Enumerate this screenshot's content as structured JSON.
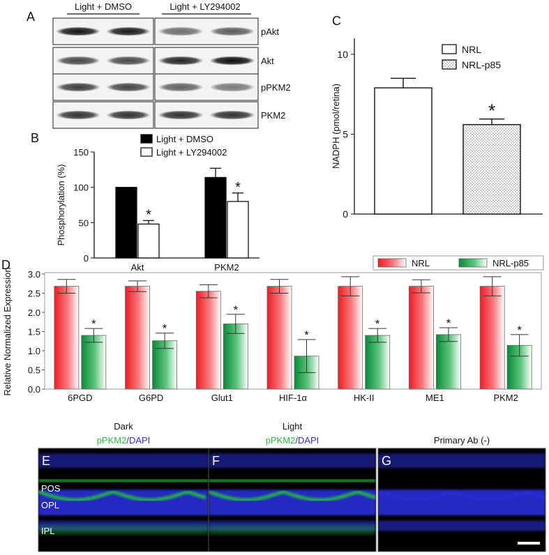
{
  "panels": {
    "a": "A",
    "b": "B",
    "c": "C",
    "d": "D",
    "e": "E",
    "f": "F",
    "g": "G"
  },
  "western_blot": {
    "groups": [
      "Light + DMSO",
      "Light + LY294002"
    ],
    "bands": [
      {
        "label": "pAkt",
        "intensity": [
          0.92,
          0.9,
          0.55,
          0.62
        ]
      },
      {
        "label": "Akt",
        "intensity": [
          0.7,
          0.7,
          0.85,
          0.95
        ]
      },
      {
        "label": "pPKM2",
        "intensity": [
          0.75,
          0.72,
          0.6,
          0.5
        ]
      },
      {
        "label": "PKM2",
        "intensity": [
          0.8,
          0.8,
          0.8,
          0.8
        ]
      }
    ]
  },
  "chart_data": [
    {
      "panel": "B",
      "type": "bar",
      "categories": [
        "Akt",
        "PKM2"
      ],
      "series": [
        {
          "name": "Light + DMSO",
          "values": [
            100,
            114
          ],
          "errors": [
            0,
            13
          ],
          "color": "#000000"
        },
        {
          "name": "Light + LY294002",
          "values": [
            48,
            80
          ],
          "errors": [
            5,
            12
          ],
          "color": "#ffffff"
        }
      ],
      "significance": [
        "*",
        "*"
      ],
      "ylabel": "Phosphorylation (%)",
      "ylim": [
        0,
        150
      ],
      "yticks": [
        "0",
        "50",
        "100",
        "150"
      ]
    },
    {
      "panel": "C",
      "type": "bar",
      "categories": [
        "NRL",
        "NRL-p85"
      ],
      "values": [
        7.9,
        5.6
      ],
      "errors": [
        0.6,
        0.35
      ],
      "series_names": [
        "NRL",
        "NRL-p85"
      ],
      "significance": "*",
      "ylabel": "NADPH (pmol/retina)",
      "ylim": [
        0,
        11
      ],
      "yticks": [
        "0",
        "5",
        "10"
      ]
    },
    {
      "panel": "D",
      "type": "bar",
      "categories": [
        "6PGD",
        "G6PD",
        "Glut1",
        "HIF-1α",
        "HK-II",
        "ME1",
        "PKM2"
      ],
      "series": [
        {
          "name": "NRL",
          "values": [
            2.68,
            2.68,
            2.55,
            2.68,
            2.68,
            2.68,
            2.68
          ],
          "errors": [
            0.18,
            0.14,
            0.17,
            0.18,
            0.25,
            0.17,
            0.25
          ],
          "color": "#ee1c24"
        },
        {
          "name": "NRL-p85",
          "values": [
            1.4,
            1.26,
            1.7,
            0.86,
            1.4,
            1.42,
            1.14
          ],
          "errors": [
            0.18,
            0.2,
            0.25,
            0.43,
            0.18,
            0.18,
            0.28
          ],
          "color": "#0a8a3a"
        }
      ],
      "significance": [
        "*",
        "*",
        "*",
        "*",
        "*",
        "*",
        "*"
      ],
      "ylabel": "Relative Normalized Expression",
      "ylim": [
        0,
        3.0
      ],
      "yticks": [
        "0.0",
        "0.5",
        "1.0",
        "1.5",
        "2.0",
        "2.5",
        "3.0"
      ],
      "legend": "top-right"
    }
  ],
  "micrographs": [
    {
      "panel": "E",
      "title": "Dark",
      "stain_green": "pPKM2",
      "slash": "/",
      "stain_blue": "DAPI",
      "layers": [
        "POS",
        "OPL",
        "IPL"
      ],
      "green_signal": 1
    },
    {
      "panel": "F",
      "title": "Light",
      "stain_green": "pPKM2",
      "slash": "/",
      "stain_blue": "DAPI",
      "layers": [],
      "green_signal": 1
    },
    {
      "panel": "G",
      "title": "Primary Ab (-)",
      "layers": [],
      "green_signal": 0
    }
  ],
  "colors": {
    "dapi_blue": "#2a2fd8",
    "pkm2_green": "#22c23a",
    "nrl_red": "#ee1c24",
    "nrl_p85_green": "#0a8a3a"
  }
}
